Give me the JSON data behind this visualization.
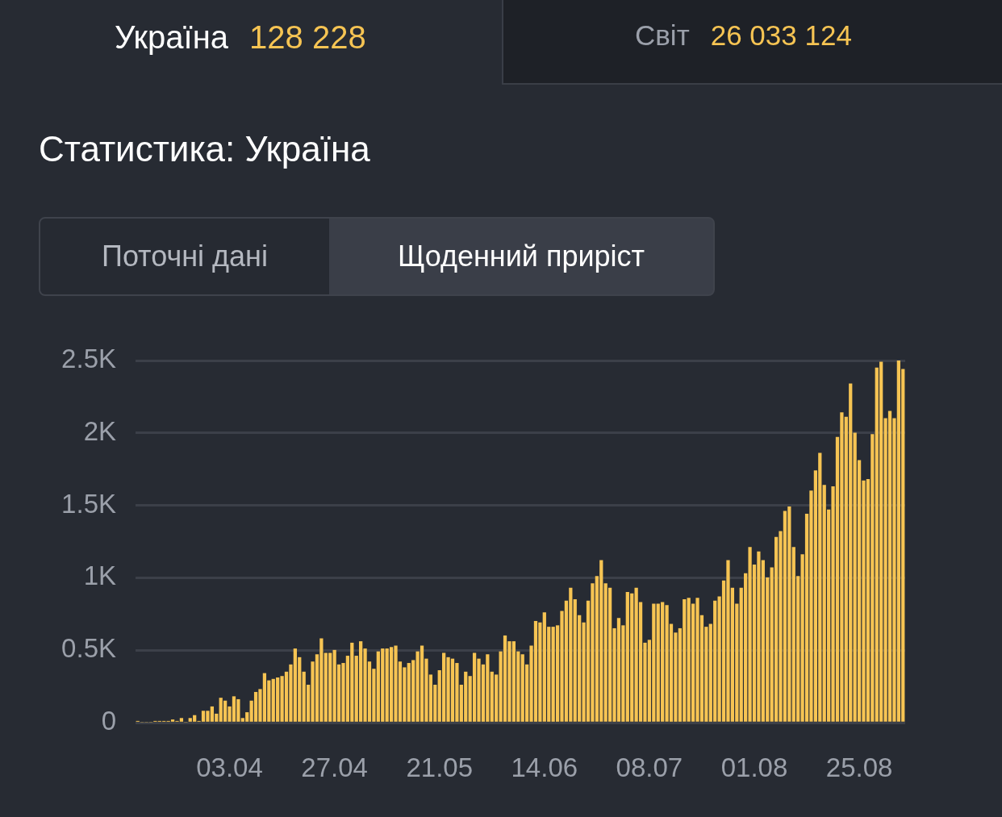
{
  "chart_data": {
    "type": "bar",
    "title": "Статистика: Україна",
    "annotations": [
      "Україна",
      "128 228",
      "Світ",
      "26 033 124",
      "Поточні дані",
      "Щоденний приріст"
    ],
    "x": [
      "--03-13",
      "--03-14",
      "--03-15",
      "--03-16",
      "--03-17",
      "--03-18",
      "--03-19",
      "--03-20",
      "--03-21",
      "--03-22",
      "--03-23",
      "--03-24",
      "--03-25",
      "--03-26",
      "--03-27",
      "--03-28",
      "--03-29",
      "--03-30",
      "--03-31",
      "--04-01",
      "--04-02",
      "--04-03",
      "--04-04",
      "--04-05",
      "--04-06",
      "--04-07",
      "--04-08",
      "--04-09",
      "--04-10",
      "--04-11",
      "--04-12",
      "--04-13",
      "--04-14",
      "--04-15",
      "--04-16",
      "--04-17",
      "--04-18",
      "--04-19",
      "--04-20",
      "--04-21",
      "--04-22",
      "--04-23",
      "--04-24",
      "--04-25",
      "--04-26",
      "--04-27",
      "--04-28",
      "--04-29",
      "--04-30",
      "--05-01",
      "--05-02",
      "--05-03",
      "--05-04",
      "--05-05",
      "--05-06",
      "--05-07",
      "--05-08",
      "--05-09",
      "--05-10",
      "--05-11",
      "--05-12",
      "--05-13",
      "--05-14",
      "--05-15",
      "--05-16",
      "--05-17",
      "--05-18",
      "--05-19",
      "--05-20",
      "--05-21",
      "--05-22",
      "--05-23",
      "--05-24",
      "--05-25",
      "--05-26",
      "--05-27",
      "--05-28",
      "--05-29",
      "--05-30",
      "--05-31",
      "--06-01",
      "--06-02",
      "--06-03",
      "--06-04",
      "--06-05",
      "--06-06",
      "--06-07",
      "--06-08",
      "--06-09",
      "--06-10",
      "--06-11",
      "--06-12",
      "--06-13",
      "--06-14",
      "--06-15",
      "--06-16",
      "--06-17",
      "--06-18",
      "--06-19",
      "--06-20",
      "--06-21",
      "--06-22",
      "--06-23",
      "--06-24",
      "--06-25",
      "--06-26",
      "--06-27",
      "--06-28",
      "--06-29",
      "--06-30",
      "--07-01",
      "--07-02",
      "--07-03",
      "--07-04",
      "--07-05",
      "--07-06",
      "--07-07",
      "--07-08",
      "--07-09",
      "--07-10",
      "--07-11",
      "--07-12",
      "--07-13",
      "--07-14",
      "--07-15",
      "--07-16",
      "--07-17",
      "--07-18",
      "--07-19",
      "--07-20",
      "--07-21",
      "--07-22",
      "--07-23",
      "--07-24",
      "--07-25",
      "--07-26",
      "--07-27",
      "--07-28",
      "--07-29",
      "--07-30",
      "--07-31",
      "--08-01",
      "--08-02",
      "--08-03",
      "--08-04",
      "--08-05",
      "--08-06",
      "--08-07",
      "--08-08",
      "--08-09",
      "--08-10",
      "--08-11",
      "--08-12",
      "--08-13",
      "--08-14",
      "--08-15",
      "--08-16",
      "--08-17",
      "--08-18",
      "--08-19",
      "--08-20",
      "--08-21",
      "--08-22",
      "--08-23",
      "--08-24",
      "--08-25",
      "--08-26",
      "--08-27",
      "--08-28",
      "--08-29",
      "--08-30",
      "--08-31",
      "--09-01",
      "--09-02",
      "--09-03",
      "--09-04"
    ],
    "values": [
      10,
      0,
      0,
      0,
      10,
      10,
      10,
      10,
      20,
      10,
      30,
      0,
      30,
      50,
      10,
      80,
      80,
      110,
      60,
      170,
      150,
      110,
      180,
      160,
      30,
      70,
      150,
      210,
      230,
      340,
      290,
      300,
      310,
      320,
      350,
      400,
      510,
      450,
      350,
      260,
      420,
      470,
      580,
      480,
      480,
      500,
      400,
      410,
      460,
      550,
      460,
      560,
      510,
      420,
      370,
      490,
      510,
      510,
      520,
      530,
      420,
      380,
      410,
      430,
      490,
      530,
      440,
      330,
      260,
      360,
      480,
      450,
      440,
      410,
      260,
      350,
      320,
      480,
      440,
      400,
      470,
      350,
      330,
      490,
      600,
      560,
      560,
      490,
      470,
      400,
      530,
      700,
      690,
      760,
      660,
      660,
      670,
      770,
      840,
      930,
      850,
      740,
      690,
      840,
      960,
      1010,
      1120,
      960,
      930,
      650,
      720,
      670,
      900,
      890,
      930,
      830,
      550,
      570,
      820,
      820,
      830,
      810,
      680,
      620,
      650,
      850,
      860,
      820,
      860,
      740,
      660,
      680,
      840,
      870,
      980,
      1120,
      930,
      820,
      930,
      1030,
      1210,
      1090,
      1180,
      1120,
      1000,
      1070,
      1280,
      1320,
      1460,
      1490,
      1210,
      1010,
      1160,
      1440,
      1600,
      1740,
      1860,
      1640,
      1470,
      1630,
      1970,
      2140,
      2110,
      2340,
      2000,
      1810,
      1670,
      1680,
      1990,
      2450,
      2490,
      2100,
      2150,
      2100,
      2500,
      2440
    ],
    "color": "#f6c453",
    "xlim": [
      "--03-12T12:00",
      "--09-04T12:00"
    ],
    "xticks": [
      {
        "value": "--04-03",
        "label": "03.04"
      },
      {
        "value": "--04-27",
        "label": "27.04"
      },
      {
        "value": "--05-21",
        "label": "21.05"
      },
      {
        "value": "--06-14",
        "label": "14.06"
      },
      {
        "value": "--07-08",
        "label": "08.07"
      },
      {
        "value": "--08-01",
        "label": "01.08"
      },
      {
        "value": "--08-25",
        "label": "25.08"
      }
    ],
    "ylim": [
      0,
      2500
    ],
    "yticks": [
      0,
      {
        "value": 500,
        "label": "0.5K"
      },
      {
        "value": 1000,
        "label": "1K"
      },
      {
        "value": 1500,
        "label": "1.5K"
      },
      {
        "value": 2000,
        "label": "2K"
      },
      {
        "value": 2500,
        "label": "2.5K"
      }
    ],
    "grid": "y"
  }
}
